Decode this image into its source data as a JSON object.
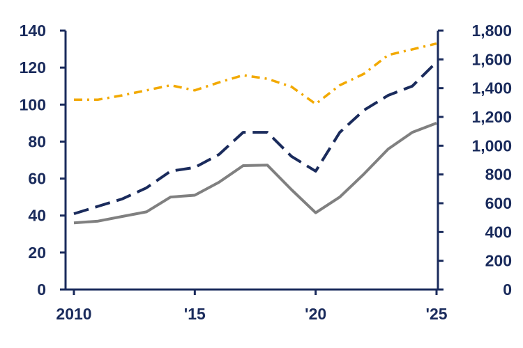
{
  "colors": {
    "axis": "#1a2b5c",
    "grey_series": "#808080",
    "navy_series": "#1a2b5c",
    "gold_series": "#f2a900"
  },
  "chart_data": {
    "type": "line",
    "title": "",
    "xlabel": "",
    "ylabel": "",
    "x": [
      2010,
      2011,
      2012,
      2013,
      2014,
      2015,
      2016,
      2017,
      2018,
      2019,
      2020,
      2021,
      2022,
      2023,
      2024,
      2025
    ],
    "x_ticks": [
      2010,
      2015,
      2020,
      2025
    ],
    "x_tick_labels": [
      "2010",
      "'15",
      "'20",
      "'25"
    ],
    "xlim": [
      2010,
      2025
    ],
    "y_left": {
      "ylim": [
        0,
        140
      ],
      "ticks": [
        "0",
        "20",
        "40",
        "60",
        "80",
        "100",
        "120",
        "140"
      ]
    },
    "y_right": {
      "ylim": [
        0,
        1800
      ],
      "ticks": [
        "0",
        "200",
        "400",
        "600",
        "800",
        "1,000",
        "1,200",
        "1,400",
        "1,600",
        "1,800"
      ]
    },
    "grid": false,
    "series": [
      {
        "axis": "left",
        "style": "solid",
        "color": "#808080",
        "values": [
          36,
          37,
          39.5,
          42,
          50,
          51,
          58,
          67,
          67.3,
          54,
          41.5,
          50,
          62.5,
          76,
          85,
          90
        ]
      },
      {
        "axis": "left",
        "style": "dashed",
        "color": "#1a2b5c",
        "values": [
          41,
          45,
          49,
          55,
          64,
          66,
          73,
          85,
          85,
          72,
          64,
          85,
          97,
          105,
          110,
          123
        ]
      },
      {
        "axis": "right",
        "style": "dashdot",
        "color": "#f2a900",
        "values": [
          1320,
          1320,
          1350,
          1385,
          1420,
          1385,
          1440,
          1490,
          1465,
          1410,
          1290,
          1420,
          1500,
          1630,
          1670,
          1710
        ]
      }
    ]
  }
}
